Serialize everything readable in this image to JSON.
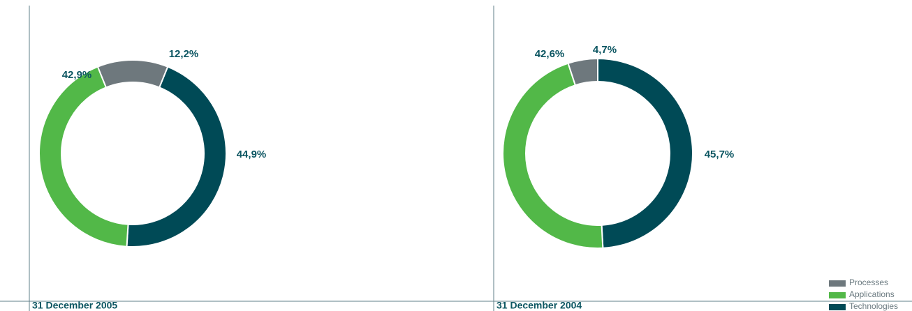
{
  "chart_data": [
    {
      "type": "pie",
      "title": "31 December 2005",
      "categories": [
        "Processes",
        "Applications",
        "Technologies"
      ],
      "values": [
        12.2,
        42.9,
        44.9
      ],
      "value_labels": [
        "12,2%",
        "42,9%",
        "44,9%"
      ],
      "colors": [
        "#6e787d",
        "#52b848",
        "#004a56"
      ]
    },
    {
      "type": "pie",
      "title": "31 December 2004",
      "categories": [
        "Processes",
        "Applications",
        "Technologies"
      ],
      "values": [
        4.7,
        42.6,
        45.7
      ],
      "value_labels": [
        "4,7%",
        "42,6%",
        "45,7%"
      ],
      "colors": [
        "#6e787d",
        "#52b848",
        "#004a56"
      ]
    }
  ]
}
